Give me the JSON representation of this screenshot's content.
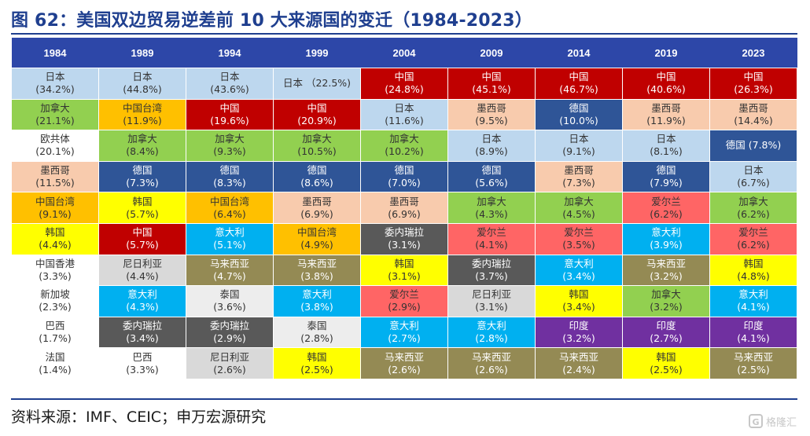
{
  "title": "图 62：美国双边贸易逆差前 10 大来源国的变迁（1984-2023）",
  "source": "资料来源：IMF、CEIC；申万宏源研究",
  "watermark": "格隆汇",
  "colors": {
    "header_bg": "#2d47a8",
    "title": "#1f3f8f",
    "日本": "#bdd7ee",
    "中国": "#c00000",
    "加拿大": "#92d050",
    "中国台湾": "#ffc000",
    "墨西哥": "#f8cbad",
    "欧共体": "#ffffff",
    "德国": "#2f5597",
    "韩国": "#ffff00",
    "中国香港": "#ffffff",
    "新加坡": "#ffffff",
    "巴西": "#ffffff",
    "法国": "#ffffff",
    "意大利": "#00b0f0",
    "委内瑞拉": "#595959",
    "尼日利亚": "#d9d9d9",
    "泰国": "#ededed",
    "马来西亚": "#948a54",
    "爱尔兰": "#ff6565",
    "印度": "#7030a0"
  },
  "years": [
    "1984",
    "1989",
    "1994",
    "1999",
    "2004",
    "2009",
    "2014",
    "2019",
    "2023"
  ],
  "rows": [
    [
      {
        "country": "日本",
        "pct": "(34.2%)"
      },
      {
        "country": "日本",
        "pct": "(44.8%)"
      },
      {
        "country": "日本",
        "pct": "(43.6%)"
      },
      {
        "country": "日本",
        "pct": "（22.5%)",
        "inline": true
      },
      {
        "country": "中国",
        "pct": "(24.8%)"
      },
      {
        "country": "中国",
        "pct": "(45.1%)"
      },
      {
        "country": "中国",
        "pct": "(46.7%)"
      },
      {
        "country": "中国",
        "pct": "(40.6%)"
      },
      {
        "country": "中国",
        "pct": "(26.3%)"
      }
    ],
    [
      {
        "country": "加拿大",
        "pct": "(21.1%)"
      },
      {
        "country": "中国台湾",
        "pct": "(11.9%)"
      },
      {
        "country": "中国",
        "pct": "(19.6%)"
      },
      {
        "country": "中国",
        "pct": "(20.9%)"
      },
      {
        "country": "日本",
        "pct": "(11.6%)"
      },
      {
        "country": "墨西哥",
        "pct": "(9.5%)"
      },
      {
        "country": "德国",
        "pct": "(10.0%)"
      },
      {
        "country": "墨西哥",
        "pct": "(11.9%)"
      },
      {
        "country": "墨西哥",
        "pct": "(14.4%)"
      }
    ],
    [
      {
        "country": "欧共体",
        "pct": "(20.1%)"
      },
      {
        "country": "加拿大",
        "pct": "(8.4%)"
      },
      {
        "country": "加拿大",
        "pct": "(9.3%)"
      },
      {
        "country": "加拿大",
        "pct": "(10.5%)"
      },
      {
        "country": "加拿大",
        "pct": "(10.2%)"
      },
      {
        "country": "日本",
        "pct": "(8.9%)"
      },
      {
        "country": "日本",
        "pct": "(9.1%)"
      },
      {
        "country": "日本",
        "pct": "(8.1%)"
      },
      {
        "country": "德国",
        "pct": "(7.8%)",
        "inline": true
      }
    ],
    [
      {
        "country": "墨西哥",
        "pct": "(11.5%)"
      },
      {
        "country": "德国",
        "pct": "(7.3%)"
      },
      {
        "country": "德国",
        "pct": "(8.3%)"
      },
      {
        "country": "德国",
        "pct": "(8.6%)"
      },
      {
        "country": "德国",
        "pct": "(7.0%)"
      },
      {
        "country": "德国",
        "pct": "(5.6%)"
      },
      {
        "country": "墨西哥",
        "pct": "(7.3%)"
      },
      {
        "country": "德国",
        "pct": "(7.9%)"
      },
      {
        "country": "日本",
        "pct": "(6.7%)"
      }
    ],
    [
      {
        "country": "中国台湾",
        "pct": "(9.1%)"
      },
      {
        "country": "韩国",
        "pct": "(5.7%)"
      },
      {
        "country": "中国台湾",
        "pct": "(6.4%)"
      },
      {
        "country": "墨西哥",
        "pct": "(6.9%)"
      },
      {
        "country": "墨西哥",
        "pct": "(6.9%)"
      },
      {
        "country": "加拿大",
        "pct": "(4.3%)"
      },
      {
        "country": "加拿大",
        "pct": "(4.5%)"
      },
      {
        "country": "爱尔兰",
        "pct": "(6.2%)"
      },
      {
        "country": "加拿大",
        "pct": "(6.2%)"
      }
    ],
    [
      {
        "country": "韩国",
        "pct": "(4.4%)"
      },
      {
        "country": "中国",
        "pct": "(5.7%)"
      },
      {
        "country": "意大利",
        "pct": "(5.1%)"
      },
      {
        "country": "中国台湾",
        "pct": "(4.9%)"
      },
      {
        "country": "委内瑞拉",
        "pct": "(3.1%)"
      },
      {
        "country": "爱尔兰",
        "pct": "(4.1%)"
      },
      {
        "country": "爱尔兰",
        "pct": "(3.5%)"
      },
      {
        "country": "意大利",
        "pct": "(3.9%)"
      },
      {
        "country": "爱尔兰",
        "pct": "(6.2%)"
      }
    ],
    [
      {
        "country": "中国香港",
        "pct": "(3.3%)"
      },
      {
        "country": "尼日利亚",
        "pct": "(4.4%)"
      },
      {
        "country": "马来西亚",
        "pct": "(4.7%)"
      },
      {
        "country": "马来西亚",
        "pct": "(3.8%)"
      },
      {
        "country": "韩国",
        "pct": "(3.1%)"
      },
      {
        "country": "委内瑞拉",
        "pct": "(3.7%)"
      },
      {
        "country": "意大利",
        "pct": "(3.4%)"
      },
      {
        "country": "马来西亚",
        "pct": "(3.2%)"
      },
      {
        "country": "韩国",
        "pct": "(4.8%)"
      }
    ],
    [
      {
        "country": "新加坡",
        "pct": "(2.3%)"
      },
      {
        "country": "意大利",
        "pct": "(4.3%)"
      },
      {
        "country": "泰国",
        "pct": "(3.6%)"
      },
      {
        "country": "意大利",
        "pct": "(3.8%)"
      },
      {
        "country": "爱尔兰",
        "pct": "(2.9%)"
      },
      {
        "country": "尼日利亚",
        "pct": "(3.1%)"
      },
      {
        "country": "韩国",
        "pct": "(3.4%)"
      },
      {
        "country": "加拿大",
        "pct": "(3.2%)"
      },
      {
        "country": "意大利",
        "pct": "(4.1%)"
      }
    ],
    [
      {
        "country": "巴西",
        "pct": "(1.7%)"
      },
      {
        "country": "委内瑞拉",
        "pct": "(3.4%)"
      },
      {
        "country": "委内瑞拉",
        "pct": "(2.9%)"
      },
      {
        "country": "泰国",
        "pct": "(2.8%)"
      },
      {
        "country": "意大利",
        "pct": "(2.7%)"
      },
      {
        "country": "意大利",
        "pct": "(2.8%)"
      },
      {
        "country": "印度",
        "pct": "(3.2%)"
      },
      {
        "country": "印度",
        "pct": "(2.7%)"
      },
      {
        "country": "印度",
        "pct": "(4.1%)"
      }
    ],
    [
      {
        "country": "法国",
        "pct": "(1.4%)"
      },
      {
        "country": "巴西",
        "pct": "(3.3%)"
      },
      {
        "country": "尼日利亚",
        "pct": "(2.6%)"
      },
      {
        "country": "韩国",
        "pct": "(2.5%)"
      },
      {
        "country": "马来西亚",
        "pct": "(2.6%)"
      },
      {
        "country": "马来西亚",
        "pct": "(2.6%)"
      },
      {
        "country": "马来西亚",
        "pct": "(2.4%)"
      },
      {
        "country": "韩国",
        "pct": "(2.5%)"
      },
      {
        "country": "马来西亚",
        "pct": "(2.5%)"
      }
    ]
  ]
}
